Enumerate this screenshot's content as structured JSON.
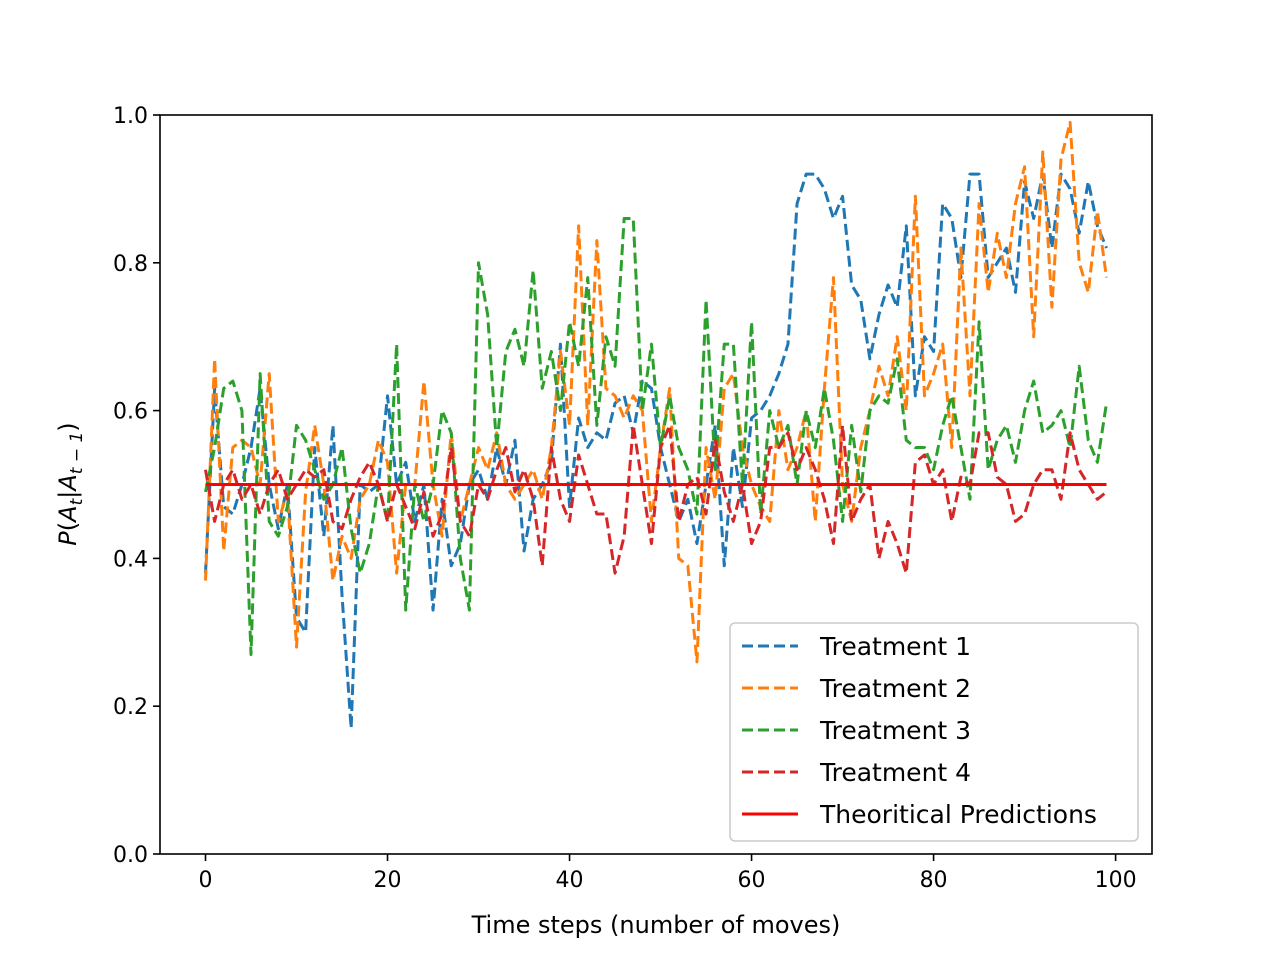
{
  "chart_data": {
    "type": "line",
    "xlabel": "Time steps (number of moves)",
    "ylabel": "P(A_t|A_{t-1})",
    "xlim": [
      -5,
      104
    ],
    "ylim": [
      0,
      1
    ],
    "xticks": [
      0,
      20,
      40,
      60,
      80,
      100
    ],
    "yticks": [
      0.0,
      0.2,
      0.4,
      0.6,
      0.8,
      1.0
    ],
    "xtick_labels": [
      "0",
      "20",
      "40",
      "60",
      "80",
      "100"
    ],
    "ytick_labels": [
      "0.0",
      "0.2",
      "0.4",
      "0.6",
      "0.8",
      "1.0"
    ],
    "grid": false,
    "legend_position": "lower right",
    "x": [
      0,
      1,
      2,
      3,
      4,
      5,
      6,
      7,
      8,
      9,
      10,
      11,
      12,
      13,
      14,
      15,
      16,
      17,
      18,
      19,
      20,
      21,
      22,
      23,
      24,
      25,
      26,
      27,
      28,
      29,
      30,
      31,
      32,
      33,
      34,
      35,
      36,
      37,
      38,
      39,
      40,
      41,
      42,
      43,
      44,
      45,
      46,
      47,
      48,
      49,
      50,
      51,
      52,
      53,
      54,
      55,
      56,
      57,
      58,
      59,
      60,
      61,
      62,
      63,
      64,
      65,
      66,
      67,
      68,
      69,
      70,
      71,
      72,
      73,
      74,
      75,
      76,
      77,
      78,
      79,
      80,
      81,
      82,
      83,
      84,
      85,
      86,
      87,
      88,
      89,
      90,
      91,
      92,
      93,
      94,
      95,
      96,
      97,
      98,
      99
    ],
    "series": [
      {
        "name": "Treatment 1",
        "color": "#1f77b4",
        "style": "dashed",
        "values": [
          0.38,
          0.63,
          0.47,
          0.46,
          0.5,
          0.55,
          0.63,
          0.5,
          0.44,
          0.5,
          0.32,
          0.3,
          0.55,
          0.43,
          0.58,
          0.35,
          0.17,
          0.5,
          0.49,
          0.5,
          0.62,
          0.5,
          0.53,
          0.45,
          0.5,
          0.33,
          0.48,
          0.39,
          0.42,
          0.5,
          0.52,
          0.48,
          0.55,
          0.5,
          0.56,
          0.41,
          0.48,
          0.5,
          0.53,
          0.69,
          0.47,
          0.59,
          0.55,
          0.57,
          0.56,
          0.61,
          0.62,
          0.57,
          0.64,
          0.63,
          0.55,
          0.5,
          0.45,
          0.48,
          0.42,
          0.5,
          0.58,
          0.39,
          0.55,
          0.47,
          0.59,
          0.6,
          0.62,
          0.65,
          0.69,
          0.88,
          0.92,
          0.92,
          0.9,
          0.86,
          0.89,
          0.77,
          0.75,
          0.67,
          0.73,
          0.77,
          0.74,
          0.85,
          0.62,
          0.7,
          0.68,
          0.88,
          0.86,
          0.78,
          0.92,
          0.92,
          0.78,
          0.8,
          0.82,
          0.76,
          0.91,
          0.86,
          0.92,
          0.82,
          0.92,
          0.9,
          0.84,
          0.91,
          0.85,
          0.82
        ]
      },
      {
        "name": "Treatment 2",
        "color": "#ff7f0e",
        "style": "dashed",
        "values": [
          0.37,
          0.67,
          0.41,
          0.55,
          0.56,
          0.55,
          0.5,
          0.65,
          0.45,
          0.49,
          0.28,
          0.49,
          0.58,
          0.5,
          0.37,
          0.43,
          0.4,
          0.48,
          0.5,
          0.56,
          0.53,
          0.38,
          0.5,
          0.5,
          0.64,
          0.5,
          0.43,
          0.57,
          0.45,
          0.5,
          0.55,
          0.52,
          0.57,
          0.5,
          0.48,
          0.5,
          0.52,
          0.48,
          0.55,
          0.68,
          0.58,
          0.85,
          0.58,
          0.83,
          0.63,
          0.62,
          0.59,
          0.62,
          0.6,
          0.45,
          0.55,
          0.63,
          0.4,
          0.39,
          0.26,
          0.55,
          0.48,
          0.63,
          0.65,
          0.55,
          0.5,
          0.47,
          0.45,
          0.6,
          0.52,
          0.55,
          0.6,
          0.45,
          0.63,
          0.78,
          0.5,
          0.45,
          0.55,
          0.6,
          0.66,
          0.62,
          0.7,
          0.6,
          0.89,
          0.62,
          0.65,
          0.69,
          0.55,
          0.82,
          0.62,
          0.88,
          0.76,
          0.84,
          0.78,
          0.88,
          0.93,
          0.7,
          0.95,
          0.74,
          0.94,
          0.99,
          0.8,
          0.76,
          0.87,
          0.78
        ]
      },
      {
        "name": "Treatment 3",
        "color": "#2ca02c",
        "style": "dashed",
        "values": [
          0.49,
          0.55,
          0.63,
          0.64,
          0.6,
          0.27,
          0.65,
          0.45,
          0.43,
          0.47,
          0.58,
          0.56,
          0.52,
          0.48,
          0.5,
          0.55,
          0.44,
          0.38,
          0.42,
          0.5,
          0.45,
          0.69,
          0.33,
          0.5,
          0.45,
          0.5,
          0.6,
          0.57,
          0.4,
          0.33,
          0.8,
          0.73,
          0.55,
          0.68,
          0.71,
          0.66,
          0.79,
          0.63,
          0.68,
          0.6,
          0.72,
          0.66,
          0.78,
          0.58,
          0.7,
          0.66,
          0.86,
          0.86,
          0.6,
          0.69,
          0.55,
          0.62,
          0.55,
          0.52,
          0.46,
          0.75,
          0.52,
          0.69,
          0.69,
          0.5,
          0.72,
          0.46,
          0.6,
          0.55,
          0.58,
          0.5,
          0.6,
          0.55,
          0.63,
          0.56,
          0.45,
          0.58,
          0.49,
          0.6,
          0.62,
          0.61,
          0.67,
          0.56,
          0.55,
          0.55,
          0.52,
          0.58,
          0.62,
          0.55,
          0.48,
          0.72,
          0.52,
          0.56,
          0.58,
          0.53,
          0.6,
          0.64,
          0.57,
          0.58,
          0.6,
          0.55,
          0.66,
          0.56,
          0.53,
          0.61
        ]
      },
      {
        "name": "Treatment 4",
        "color": "#d62728",
        "style": "dashed",
        "values": [
          0.52,
          0.45,
          0.5,
          0.52,
          0.48,
          0.5,
          0.46,
          0.5,
          0.52,
          0.48,
          0.5,
          0.52,
          0.51,
          0.52,
          0.45,
          0.44,
          0.48,
          0.51,
          0.53,
          0.5,
          0.45,
          0.5,
          0.47,
          0.44,
          0.49,
          0.43,
          0.46,
          0.55,
          0.45,
          0.43,
          0.5,
          0.48,
          0.52,
          0.55,
          0.49,
          0.52,
          0.48,
          0.39,
          0.55,
          0.48,
          0.45,
          0.54,
          0.5,
          0.46,
          0.46,
          0.38,
          0.43,
          0.58,
          0.5,
          0.42,
          0.55,
          0.58,
          0.45,
          0.5,
          0.51,
          0.46,
          0.56,
          0.49,
          0.45,
          0.5,
          0.42,
          0.45,
          0.55,
          0.55,
          0.57,
          0.52,
          0.55,
          0.52,
          0.48,
          0.42,
          0.58,
          0.45,
          0.48,
          0.5,
          0.4,
          0.45,
          0.42,
          0.38,
          0.53,
          0.54,
          0.5,
          0.52,
          0.45,
          0.51,
          0.5,
          0.57,
          0.57,
          0.51,
          0.5,
          0.45,
          0.46,
          0.5,
          0.52,
          0.52,
          0.48,
          0.57,
          0.52,
          0.5,
          0.48,
          0.49
        ]
      },
      {
        "name": "Theoritical Predictions",
        "color": "#ff0000",
        "style": "solid",
        "x_range": [
          0,
          99
        ],
        "value": 0.5
      }
    ]
  }
}
